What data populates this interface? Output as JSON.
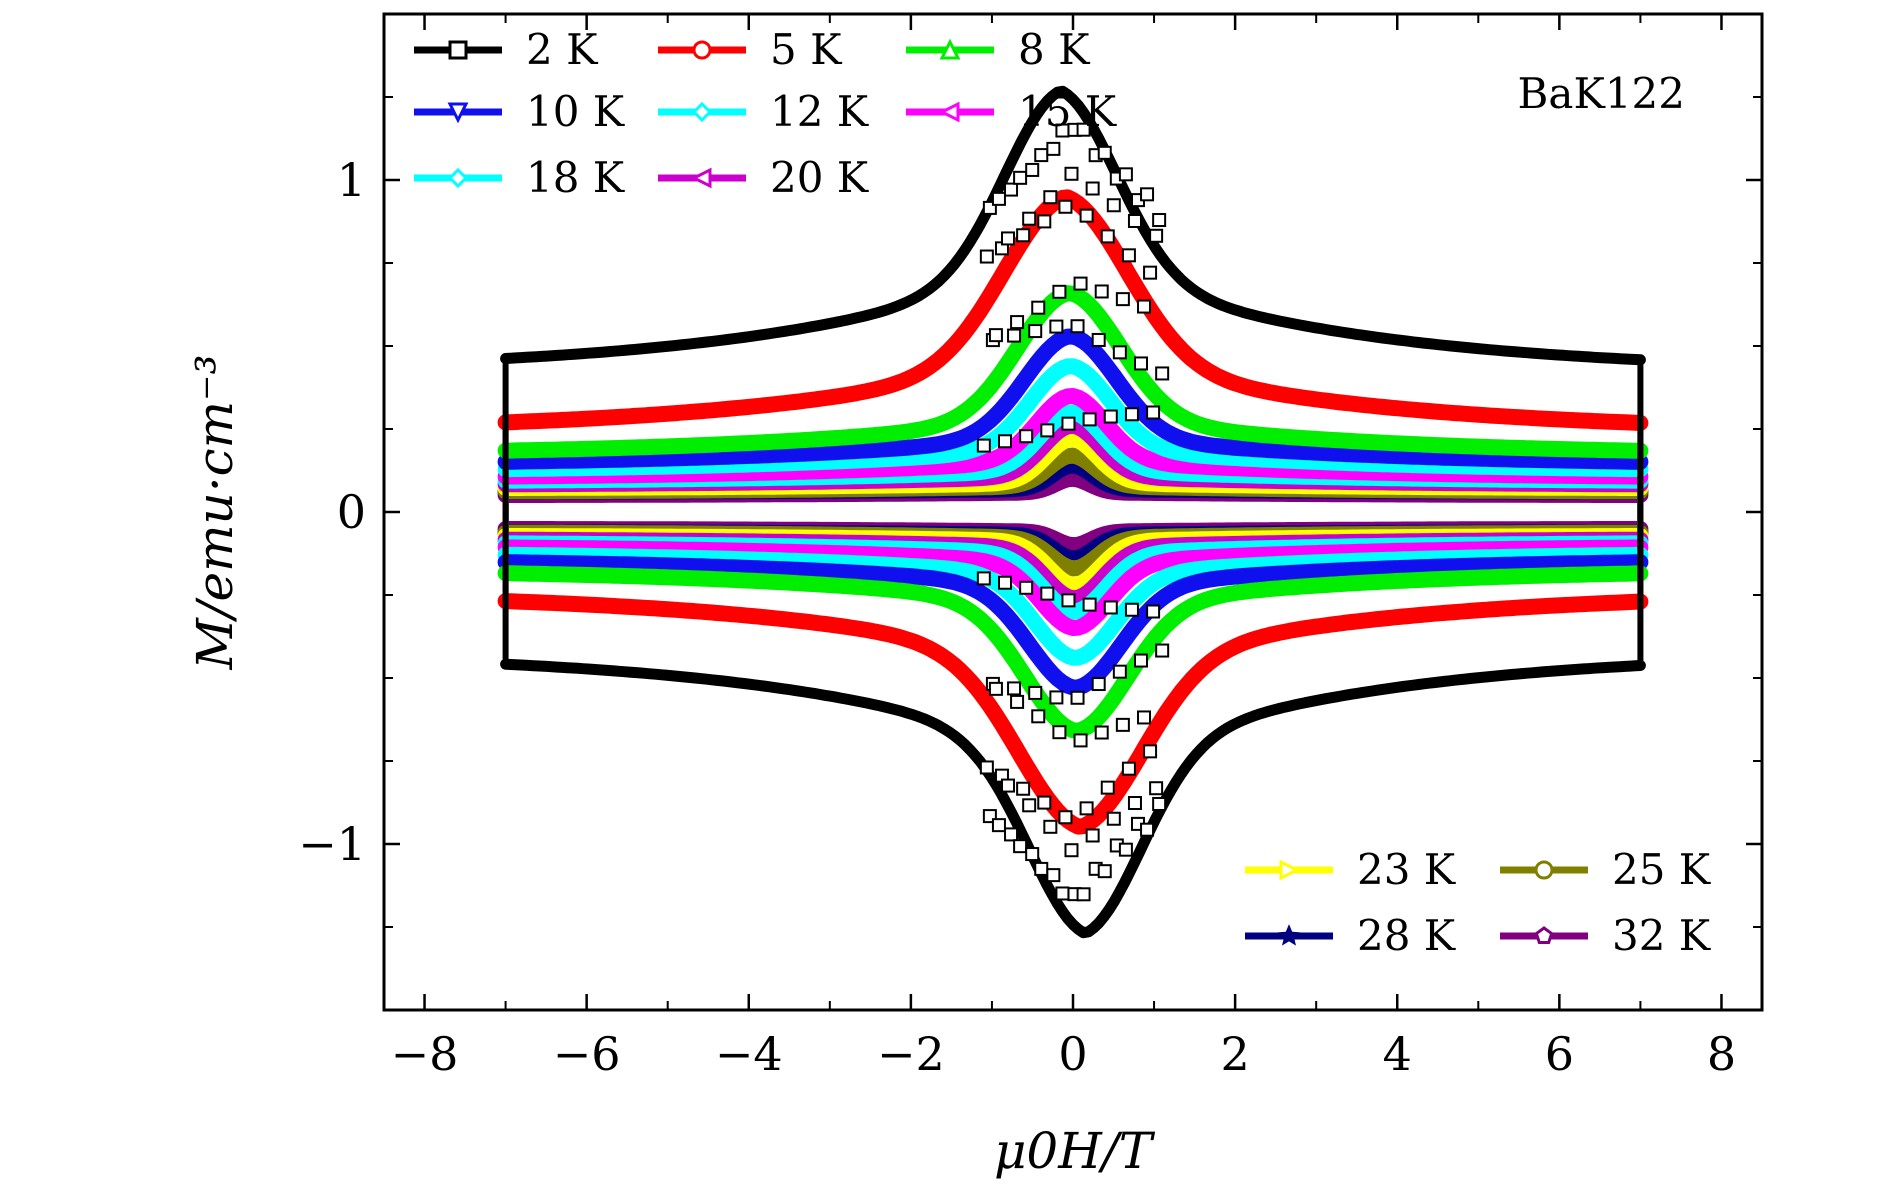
{
  "chart_data": {
    "type": "line",
    "title": "",
    "annotation": "BaK122",
    "xlabel": "μ0H/T",
    "ylabel": "M/emu·cm⁻³",
    "xlim": [
      -8.5,
      8.5
    ],
    "ylim": [
      -1.5,
      1.5
    ],
    "x_ticks": [
      -8,
      -6,
      -4,
      -2,
      0,
      2,
      4,
      6,
      8
    ],
    "x_tick_labels": [
      "−8",
      "−6",
      "−4",
      "−2",
      "0",
      "2",
      "4",
      "6",
      "8"
    ],
    "y_ticks": [
      -1,
      0,
      1
    ],
    "y_tick_labels": [
      "−1",
      "0",
      "1"
    ],
    "grid": false,
    "legend_position_primary": "top-left",
    "legend_position_secondary": "bottom-right",
    "series": [
      {
        "name": "2 K",
        "label": "2 K",
        "color": "#000000",
        "marker": "square",
        "peak": 1.27,
        "mid": 0.78,
        "edge": 0.42,
        "width": 1.0,
        "jump_field": 1.0,
        "hysteresis": 1.0
      },
      {
        "name": "5 K",
        "label": "5 K",
        "color": "#ff0000",
        "marker": "circle",
        "peak": 0.95,
        "mid": 0.5,
        "edge": 0.24,
        "width": 1.1,
        "jump_field": 0.9,
        "hysteresis": 0.6
      },
      {
        "name": "8 K",
        "label": "8 K",
        "color": "#00ee00",
        "marker": "triangle-up",
        "peak": 0.66,
        "mid": 0.3,
        "edge": 0.17,
        "width": 0.9,
        "jump_field": 0,
        "hysteresis": 0.3
      },
      {
        "name": "10 K",
        "label": "10 K",
        "color": "#1010ee",
        "marker": "triangle-down",
        "peak": 0.53,
        "mid": 0.24,
        "edge": 0.14,
        "width": 0.8,
        "jump_field": 0,
        "hysteresis": 0.2
      },
      {
        "name": "12 K",
        "label": "12 K",
        "color": "#00ffff",
        "marker": "diamond",
        "peak": 0.44,
        "mid": 0.2,
        "edge": 0.12,
        "width": 0.7,
        "jump_field": 0,
        "hysteresis": 0.2
      },
      {
        "name": "15 K",
        "label": "15 K",
        "color": "#ff00ff",
        "marker": "triangle-left",
        "peak": 0.35,
        "mid": 0.16,
        "edge": 0.1,
        "width": 0.6,
        "jump_field": 0,
        "hysteresis": 0.15
      },
      {
        "name": "18 K",
        "label": "18 K",
        "color": "#00ffff",
        "marker": "diamond",
        "peak": 0.3,
        "mid": 0.13,
        "edge": 0.09,
        "width": 0.55,
        "jump_field": 0,
        "hysteresis": 0.1
      },
      {
        "name": "20 K",
        "label": "20 K",
        "color": "#cc00cc",
        "marker": "triangle-left",
        "peak": 0.26,
        "mid": 0.11,
        "edge": 0.08,
        "width": 0.5,
        "jump_field": 0,
        "hysteresis": 0.1
      },
      {
        "name": "23 K",
        "label": "23 K",
        "color": "#ffff00",
        "marker": "triangle-right",
        "peak": 0.22,
        "mid": 0.09,
        "edge": 0.07,
        "width": 0.45,
        "jump_field": 0,
        "hysteresis": 0.1
      },
      {
        "name": "25 K",
        "label": "25 K",
        "color": "#808000",
        "marker": "circle",
        "peak": 0.17,
        "mid": 0.08,
        "edge": 0.06,
        "width": 0.4,
        "jump_field": 0,
        "hysteresis": 0.1
      },
      {
        "name": "28 K",
        "label": "28 K",
        "color": "#000080",
        "marker": "star",
        "peak": 0.14,
        "mid": 0.07,
        "edge": 0.06,
        "width": 0.35,
        "jump_field": 0,
        "hysteresis": 0.05
      },
      {
        "name": "32 K",
        "label": "32 K",
        "color": "#800080",
        "marker": "pentagon",
        "peak": 0.1,
        "mid": 0.06,
        "edge": 0.05,
        "width": 0.3,
        "jump_field": 0,
        "hysteresis": 0.05
      }
    ]
  }
}
